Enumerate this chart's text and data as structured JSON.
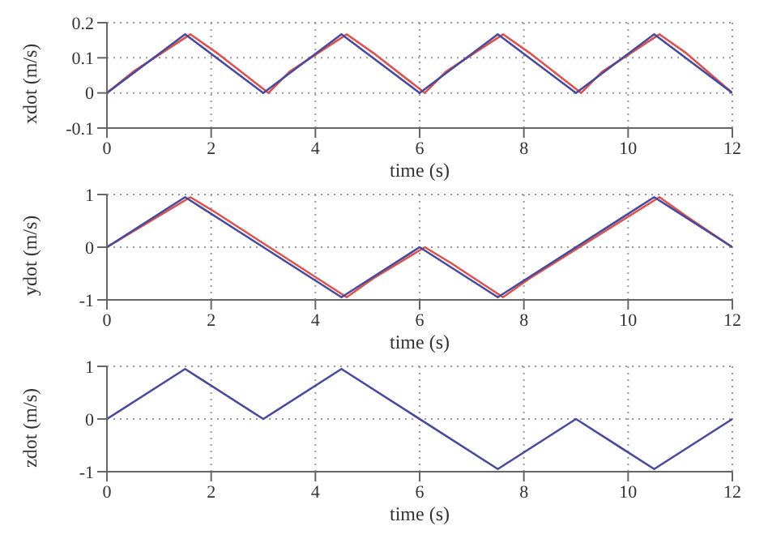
{
  "chart_data": [
    {
      "type": "line",
      "xlabel": "time (s)",
      "ylabel": "xdot (m/s)",
      "xlim": [
        0,
        12
      ],
      "xticks": [
        0,
        2,
        4,
        6,
        8,
        10,
        12
      ],
      "ylim": [
        -0.1,
        0.2
      ],
      "yticks": [
        -0.1,
        0,
        0.1,
        0.2
      ],
      "grid": true,
      "marker": "none",
      "line_style": "solid",
      "series": [
        {
          "color": "#d9534f",
          "x": [
            0,
            0.5,
            1.6,
            2.1,
            3.1,
            3.5,
            4.6,
            5.1,
            6.1,
            6.5,
            7.6,
            8.1,
            9.1,
            9.5,
            10.6,
            11.1,
            12
          ],
          "values": [
            0,
            0.06,
            0.167,
            0.115,
            0,
            0.06,
            0.167,
            0.115,
            0,
            0.06,
            0.167,
            0.115,
            0,
            0.06,
            0.167,
            0.115,
            0
          ]
        },
        {
          "color": "#4a4a9c",
          "x": [
            0,
            1.5,
            3,
            4.5,
            6,
            7.5,
            9,
            10.5,
            12
          ],
          "values": [
            0,
            0.167,
            0,
            0.167,
            0,
            0.167,
            0,
            0.167,
            0
          ]
        }
      ]
    },
    {
      "type": "line",
      "xlabel": "time (s)",
      "ylabel": "ydot (m/s)",
      "xlim": [
        0,
        12
      ],
      "xticks": [
        0,
        2,
        4,
        6,
        8,
        10,
        12
      ],
      "ylim": [
        -1,
        1
      ],
      "yticks": [
        -1,
        0,
        1
      ],
      "grid": true,
      "marker": "none",
      "line_style": "solid",
      "series": [
        {
          "color": "#d9534f",
          "x": [
            0,
            1.6,
            2.1,
            4.6,
            5.1,
            6.1,
            6.6,
            7.6,
            8.1,
            10.6,
            11.1,
            12
          ],
          "values": [
            0,
            0.95,
            0.65,
            -0.95,
            -0.6,
            0,
            -0.3,
            -0.95,
            -0.6,
            0.95,
            0.6,
            0
          ]
        },
        {
          "color": "#4a4a9c",
          "x": [
            0,
            1.5,
            4.5,
            6,
            7.5,
            10.5,
            12
          ],
          "values": [
            0,
            0.95,
            -0.95,
            0,
            -0.95,
            0.95,
            0
          ]
        }
      ]
    },
    {
      "type": "line",
      "xlabel": "time (s)",
      "ylabel": "zdot (m/s)",
      "xlim": [
        0,
        12
      ],
      "xticks": [
        0,
        2,
        4,
        6,
        8,
        10,
        12
      ],
      "ylim": [
        -1,
        1
      ],
      "yticks": [
        -1,
        0,
        1
      ],
      "grid": true,
      "marker": "none",
      "line_style": "solid",
      "series": [
        {
          "color": "#4a4a9c",
          "x": [
            0,
            1.5,
            3,
            4.5,
            7.5,
            9,
            10.5,
            12
          ],
          "values": [
            0,
            0.95,
            0,
            0.95,
            -0.95,
            0,
            -0.95,
            0
          ]
        }
      ]
    }
  ]
}
